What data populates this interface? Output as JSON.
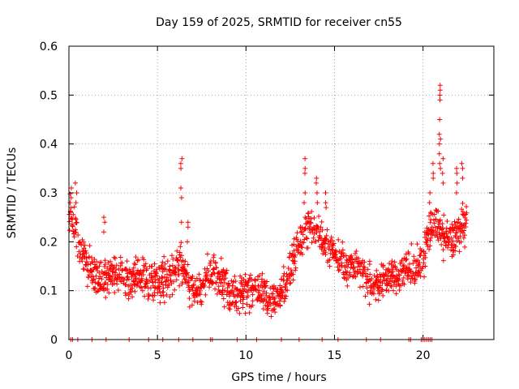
{
  "chart_data": {
    "type": "scatter",
    "title": "Day 159 of 2025, SRMTID for receiver cn55",
    "xlabel": "GPS time / hours",
    "ylabel": "SRMTID / TECUs",
    "xlim": [
      0,
      24
    ],
    "ylim": [
      0,
      0.6
    ],
    "grid": true,
    "marker": "plus",
    "color": "#ff0000",
    "x_ticks": [
      0,
      5,
      10,
      15,
      20
    ],
    "x_tick_labels": [
      "0",
      "5",
      "10",
      "15",
      "20"
    ],
    "y_ticks": [
      0,
      0.1,
      0.2,
      0.3,
      0.4,
      0.5,
      0.6
    ],
    "y_tick_labels": [
      "0",
      "0.1",
      "0.2",
      "0.3",
      "0.4",
      "0.5",
      "0.6"
    ],
    "trend": {
      "x": [
        0,
        0.3,
        0.6,
        1,
        1.5,
        2,
        2.5,
        3,
        3.5,
        4,
        4.5,
        5,
        5.5,
        6,
        6.3,
        6.6,
        7,
        7.5,
        8,
        8.5,
        9,
        9.5,
        10,
        10.5,
        11,
        11.5,
        12,
        12.5,
        13,
        13.5,
        14,
        14.5,
        15,
        15.5,
        16,
        16.5,
        17,
        17.5,
        18,
        18.5,
        19,
        19.5,
        20,
        20.3,
        20.6,
        21,
        21.5,
        22,
        22.5
      ],
      "y": [
        0.27,
        0.23,
        0.19,
        0.16,
        0.13,
        0.12,
        0.14,
        0.13,
        0.12,
        0.13,
        0.12,
        0.12,
        0.13,
        0.14,
        0.16,
        0.13,
        0.1,
        0.11,
        0.13,
        0.13,
        0.1,
        0.09,
        0.1,
        0.11,
        0.09,
        0.08,
        0.1,
        0.14,
        0.2,
        0.23,
        0.22,
        0.2,
        0.18,
        0.16,
        0.15,
        0.14,
        0.11,
        0.12,
        0.13,
        0.13,
        0.14,
        0.15,
        0.16,
        0.22,
        0.24,
        0.22,
        0.2,
        0.22,
        0.25
      ]
    },
    "spread": 0.035,
    "bursts": [
      {
        "x": 0.1,
        "y": [
          0.31,
          0.29,
          0.28,
          0.26
        ]
      },
      {
        "x": 0.4,
        "y": [
          0.32,
          0.3,
          0.28
        ]
      },
      {
        "x": 2.0,
        "y": [
          0.25,
          0.24,
          0.22
        ]
      },
      {
        "x": 6.35,
        "y": [
          0.37,
          0.36,
          0.35,
          0.31,
          0.29,
          0.24
        ]
      },
      {
        "x": 6.7,
        "y": [
          0.24,
          0.23,
          0.2
        ]
      },
      {
        "x": 13.3,
        "y": [
          0.37,
          0.35,
          0.34,
          0.3,
          0.28
        ]
      },
      {
        "x": 14.0,
        "y": [
          0.33,
          0.32,
          0.3,
          0.28
        ]
      },
      {
        "x": 14.5,
        "y": [
          0.3,
          0.28,
          0.27
        ]
      },
      {
        "x": 20.4,
        "y": [
          0.3,
          0.28,
          0.26
        ]
      },
      {
        "x": 20.6,
        "y": [
          0.36,
          0.34,
          0.33
        ]
      },
      {
        "x": 20.95,
        "y": [
          0.52,
          0.51,
          0.5,
          0.49,
          0.45,
          0.42,
          0.41,
          0.4,
          0.38,
          0.36,
          0.35
        ]
      },
      {
        "x": 21.1,
        "y": [
          0.37,
          0.34,
          0.32
        ]
      },
      {
        "x": 21.9,
        "y": [
          0.35,
          0.34,
          0.32,
          0.3
        ]
      },
      {
        "x": 22.2,
        "y": [
          0.36,
          0.35,
          0.33
        ]
      }
    ],
    "zero_points_x": [
      0.1,
      0.2,
      0.5,
      1.3,
      2.1,
      3.4,
      4.5,
      5.3,
      6.2,
      7.0,
      8.0,
      8.1,
      9.5,
      10.6,
      12.0,
      13.0,
      14.3,
      15.2,
      16.8,
      17.6,
      19.2,
      19.3,
      19.9,
      20.0,
      20.1,
      20.2,
      20.3,
      20.4,
      20.5
    ]
  }
}
